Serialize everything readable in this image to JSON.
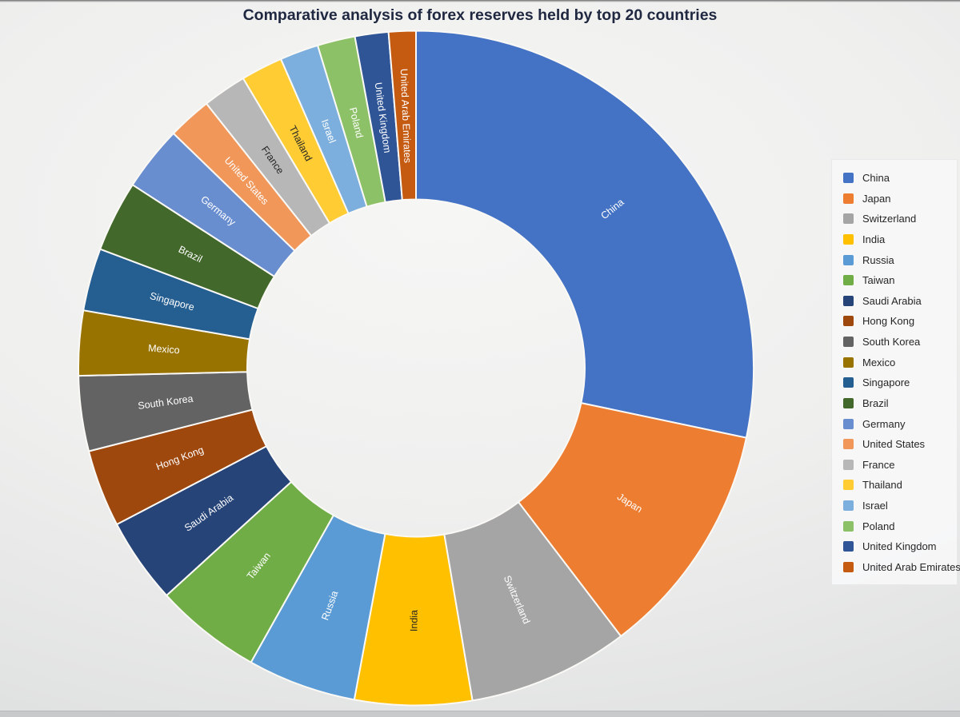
{
  "title": "Comparative analysis of forex reserves held by top 20 countries",
  "colors": {
    "title_text": "#1F2840",
    "slice_gap": "#FAF9F6",
    "dark_slice_label": "#262626",
    "light_slice_label": "#FFFFFF",
    "legend_text": "#262626",
    "legend_panel": "#F7F7F8"
  },
  "chart_data": {
    "type": "pie",
    "subtype": "donut",
    "title": "Comparative analysis of forex reserves held by top 20 countries",
    "unit": "percent share of total (estimated from arc angles; no numeric labels shown in chart)",
    "start_angle_deg": 0,
    "direction": "clockwise",
    "inner_radius_ratio": 0.5,
    "legend_position": "right",
    "labels_inside_slices": true,
    "categories": [
      "China",
      "Japan",
      "Switzerland",
      "India",
      "Russia",
      "Taiwan",
      "Saudi Arabia",
      "Hong Kong",
      "South Korea",
      "Mexico",
      "Singapore",
      "Brazil",
      "Germany",
      "United States",
      "France",
      "Thailand",
      "Israel",
      "Poland",
      "United Kingdom",
      "United Arab Emirates"
    ],
    "values": [
      28.3,
      11.3,
      7.7,
      5.6,
      5.2,
      5.1,
      4.1,
      3.7,
      3.6,
      3.1,
      3.0,
      3.4,
      3.1,
      2.1,
      2.1,
      2.0,
      1.85,
      1.8,
      1.6,
      1.3
    ],
    "colors": [
      "#4472C4",
      "#ED7D31",
      "#A5A5A5",
      "#FFC000",
      "#5B9BD5",
      "#70AD47",
      "#264478",
      "#9E480E",
      "#636363",
      "#997300",
      "#255E91",
      "#43682B",
      "#698ED0",
      "#F1975A",
      "#B7B7B7",
      "#FFCD33",
      "#7CAFDD",
      "#8CC168",
      "#2F5597",
      "#C55A11"
    ]
  }
}
